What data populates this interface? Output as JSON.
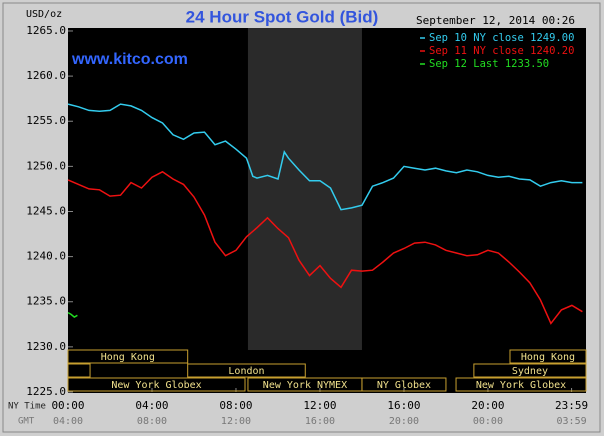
{
  "chart_data": {
    "type": "line",
    "title": "24 Hour Spot Gold (Bid)",
    "watermark": "www.kitco.com",
    "timestamp": "September 12, 2014 00:26",
    "y_label": "USD/oz",
    "x_label": "NY Time",
    "x2_label": "GMT",
    "xlim": [
      0,
      24.67
    ],
    "ylim": [
      1225,
      1265.33
    ],
    "yticks": [
      {
        "value": 1265,
        "label": "1265.0"
      },
      {
        "value": 1260,
        "label": "1260.0"
      },
      {
        "value": 1255,
        "label": "1255.0"
      },
      {
        "value": 1250,
        "label": "1250.0"
      },
      {
        "value": 1245,
        "label": "1245.0"
      },
      {
        "value": 1240,
        "label": "1240.0"
      },
      {
        "value": 1235,
        "label": "1235.0"
      },
      {
        "value": 1230,
        "label": "1230.0"
      },
      {
        "value": 1225,
        "label": "1225.0"
      }
    ],
    "xticks": [
      {
        "value": 0,
        "label": "00:00"
      },
      {
        "value": 4,
        "label": "04:00"
      },
      {
        "value": 8,
        "label": "08:00"
      },
      {
        "value": 12,
        "label": "12:00"
      },
      {
        "value": 16,
        "label": "16:00"
      },
      {
        "value": 20,
        "label": "20:00"
      },
      {
        "value": 23.983,
        "label": "23:59"
      }
    ],
    "x2ticks": [
      {
        "value": 0,
        "label": "04:00"
      },
      {
        "value": 4,
        "label": "08:00"
      },
      {
        "value": 8,
        "label": "12:00"
      },
      {
        "value": 12,
        "label": "16:00"
      },
      {
        "value": 16,
        "label": "20:00"
      },
      {
        "value": 20,
        "label": "00:00"
      },
      {
        "value": 23.983,
        "label": "03:59"
      }
    ],
    "series": [
      {
        "name": "Sep 10 NY close 1249.00",
        "color": "#33ccee",
        "x": [
          0,
          0.5,
          1,
          1.5,
          2,
          2.5,
          3,
          3.5,
          4,
          4.5,
          5,
          5.5,
          6,
          6.5,
          7,
          7.5,
          8,
          8.5,
          8.8,
          9,
          9.5,
          10,
          10.3,
          10.5,
          11,
          11.5,
          12,
          12.5,
          13,
          13.5,
          14,
          14.5,
          15,
          15.5,
          16,
          16.5,
          17,
          17.5,
          18,
          18.5,
          19,
          19.5,
          20,
          20.5,
          21,
          21.5,
          22,
          22.5,
          23,
          23.5,
          24,
          24.5
        ],
        "values": [
          1256.9,
          1256.6,
          1256.2,
          1256.1,
          1256.2,
          1256.9,
          1256.7,
          1256.2,
          1255.4,
          1254.8,
          1253.5,
          1253.0,
          1253.7,
          1253.8,
          1252.4,
          1252.8,
          1251.9,
          1250.9,
          1248.9,
          1248.7,
          1249.0,
          1248.6,
          1251.6,
          1250.9,
          1249.6,
          1248.4,
          1248.4,
          1247.6,
          1245.2,
          1245.4,
          1245.7,
          1247.8,
          1248.2,
          1248.7,
          1250.0,
          1249.8,
          1249.6,
          1249.8,
          1249.5,
          1249.3,
          1249.6,
          1249.4,
          1249.0,
          1248.8,
          1248.9,
          1248.6,
          1248.5,
          1247.8,
          1248.2,
          1248.4,
          1248.2,
          1248.2
        ]
      },
      {
        "name": "Sep 11 NY close 1240.20",
        "color": "#ee1111",
        "x": [
          0,
          0.5,
          1,
          1.5,
          2,
          2.5,
          3,
          3.5,
          4,
          4.5,
          5,
          5.5,
          6,
          6.5,
          7,
          7.5,
          8,
          8.5,
          9,
          9.5,
          10,
          10.5,
          11,
          11.5,
          12,
          12.5,
          13,
          13.5,
          14,
          14.5,
          15,
          15.5,
          16,
          16.5,
          17,
          17.5,
          18,
          18.5,
          19,
          19.5,
          20,
          20.5,
          21,
          21.5,
          22,
          22.5,
          23,
          23.5,
          24,
          24.5
        ],
        "values": [
          1248.5,
          1248.0,
          1247.5,
          1247.4,
          1246.7,
          1246.8,
          1248.2,
          1247.6,
          1248.8,
          1249.4,
          1248.6,
          1248.0,
          1246.6,
          1244.6,
          1241.6,
          1240.1,
          1240.7,
          1242.2,
          1243.2,
          1244.3,
          1243.1,
          1242.1,
          1239.6,
          1237.9,
          1239.0,
          1237.6,
          1236.6,
          1238.5,
          1238.4,
          1238.5,
          1239.4,
          1240.4,
          1240.9,
          1241.5,
          1241.6,
          1241.3,
          1240.7,
          1240.4,
          1240.1,
          1240.2,
          1240.7,
          1240.4,
          1239.4,
          1238.3,
          1237.1,
          1235.2,
          1232.6,
          1234.1,
          1234.6,
          1233.9
        ]
      },
      {
        "name": "Sep 12 Last 1233.50",
        "color": "#22dd22",
        "x": [
          0,
          0.15,
          0.3,
          0.45
        ],
        "values": [
          1233.8,
          1233.6,
          1233.3,
          1233.5
        ]
      }
    ],
    "session_rows": [
      [
        {
          "label": "Hong Kong",
          "start": 0,
          "end": 5.7
        },
        {
          "label": "Hong Kong",
          "start": 21.05,
          "end": 24.67
        }
      ],
      [
        {
          "label": null,
          "start": 0,
          "end": 1.05
        },
        {
          "label": "London",
          "start": 5.7,
          "end": 11.3
        },
        {
          "label": "Sydney",
          "start": 19.33,
          "end": 24.67
        }
      ],
      [
        {
          "label": "New York Globex",
          "start": 0,
          "end": 8.43
        },
        {
          "label": "New York NYMEX",
          "start": 8.57,
          "end": 14.0
        },
        {
          "label": "NY Globex",
          "start": 14.0,
          "end": 18.0
        },
        {
          "label": "New York Globex",
          "start": 18.48,
          "end": 24.67
        }
      ]
    ]
  }
}
